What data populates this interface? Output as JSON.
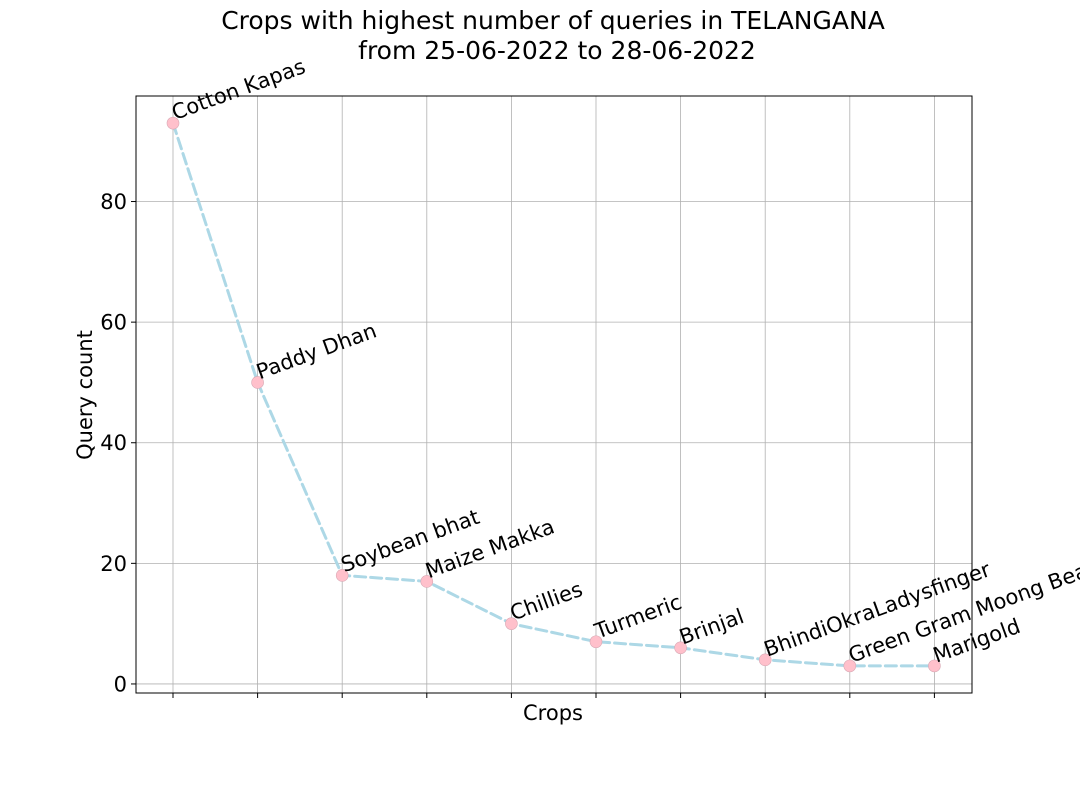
{
  "chart_data": {
    "type": "line",
    "title_line1": "Crops with highest number of queries in TELANGANA",
    "title_line2": "from 25-06-2022 to 28-06-2022",
    "xlabel": "Crops",
    "ylabel": "Query count",
    "categories": [
      "Cotton Kapas",
      "Paddy Dhan",
      "Soybean bhat",
      "Maize Makka",
      "Chillies",
      "Turmeric",
      "Brinjal",
      "BhindiOkraLadysfinger",
      "Green Gram Moong Bean",
      "Marigold"
    ],
    "values": [
      93,
      50,
      18,
      17,
      10,
      7,
      6,
      4,
      3,
      3
    ],
    "yticks": [
      "0",
      "20",
      "40",
      "60",
      "80"
    ],
    "ylim": [
      -1.5,
      97.5
    ],
    "grid": true,
    "line_color": "#add8e6",
    "marker_color": "#ffc0cb",
    "line_style": "dashed"
  }
}
